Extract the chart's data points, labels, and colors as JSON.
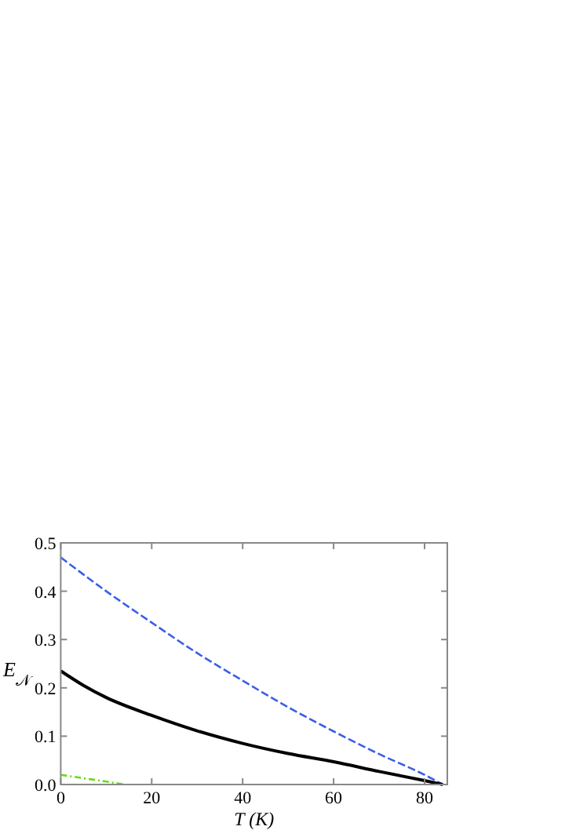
{
  "chart_data": {
    "type": "line",
    "xlabel": "T (K)",
    "ylabel": "E$_{𝒩}$",
    "xlim": [
      0,
      85
    ],
    "ylim": [
      0,
      0.5
    ],
    "xticks": [
      0,
      20,
      40,
      60,
      80
    ],
    "yticks": [
      {
        "value": 0,
        "label": "0.0"
      },
      {
        "value": 0.1,
        "label": "0.1"
      },
      {
        "value": 0.2,
        "label": "0.2"
      },
      {
        "value": 0.3,
        "label": "0.3"
      },
      {
        "value": 0.4,
        "label": "0.4"
      },
      {
        "value": 0.5,
        "label": "0.5"
      }
    ],
    "grid": false,
    "marker": "none",
    "series": [
      {
        "color": "#3b5ee8",
        "line_style": "dashed",
        "x": [
          0,
          10,
          20,
          30,
          40,
          50,
          60,
          70,
          80,
          84
        ],
        "values": [
          0.47,
          0.4,
          0.335,
          0.272,
          0.215,
          0.16,
          0.11,
          0.063,
          0.02,
          0
        ]
      },
      {
        "color": "#000000",
        "line_style": "solid",
        "x": [
          0,
          5,
          10,
          20,
          30,
          40,
          50,
          60,
          70,
          80,
          84
        ],
        "values": [
          0.235,
          0.205,
          0.18,
          0.143,
          0.111,
          0.085,
          0.064,
          0.047,
          0.027,
          0.008,
          0
        ]
      },
      {
        "color": "#66dd11",
        "line_style": "dotted",
        "x": [
          0,
          5,
          10,
          14
        ],
        "values": [
          0.02,
          0.013,
          0.006,
          0
        ]
      }
    ]
  }
}
